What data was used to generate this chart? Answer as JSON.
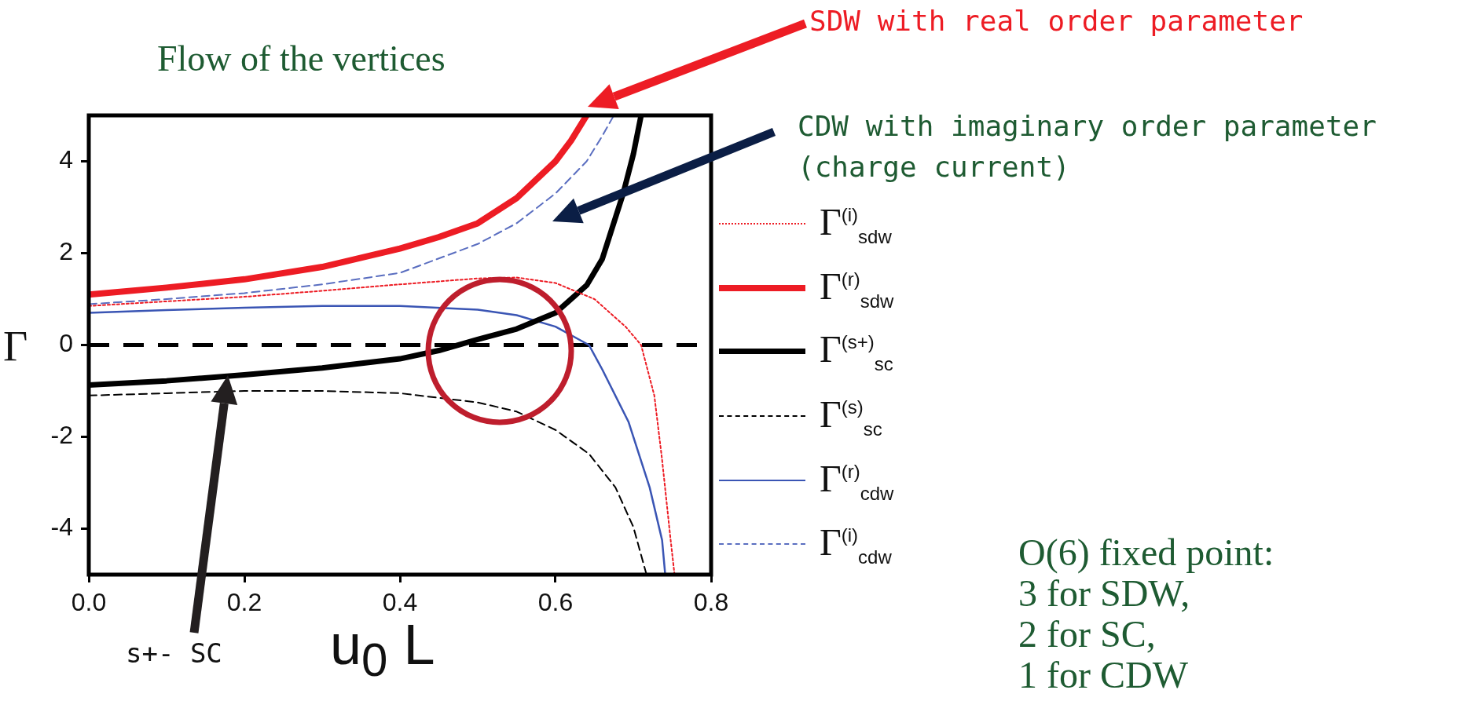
{
  "chart_data": {
    "type": "line",
    "title": "Flow of the vertices",
    "xlabel": "u$_{0}$ L",
    "ylabel": "Γ",
    "xlim": [
      0,
      0.8
    ],
    "xticks": [
      {
        "value": 0,
        "label": "0.0"
      },
      0.2,
      0.4,
      0.6,
      {
        "value": 0.8,
        "label": "0.8"
      }
    ],
    "ylim": [
      -5,
      5
    ],
    "yticks": [
      -4,
      -2,
      0,
      2,
      4
    ],
    "grid": false,
    "legend": "right",
    "marker": "none",
    "ref_lines": [
      {
        "axis": "y",
        "value": 0,
        "color": "#000000",
        "line_style": "dashed"
      }
    ],
    "annotations": [
      "SDW with real order parameter",
      "CDW with imaginary order parameter",
      "(charge current)",
      "s+- SC",
      "O(6) fixed point:",
      "3 for SDW,",
      "2 for SC,",
      "1 for CDW"
    ],
    "series": [
      {
        "name": "Γ$^{(i)}$$_{sdw}$",
        "color": "#ed1c24",
        "line_style": "dotted",
        "x": [
          0,
          0.1,
          0.2,
          0.3,
          0.4,
          0.5,
          0.55,
          0.6,
          0.65,
          0.69,
          0.71,
          0.727,
          0.737,
          0.748,
          0.753
        ],
        "values": [
          0.85,
          0.95,
          1.05,
          1.18,
          1.32,
          1.45,
          1.47,
          1.35,
          1.0,
          0.4,
          0,
          -1.1,
          -2.5,
          -4.25,
          -5
        ]
      },
      {
        "name": "Γ$^{(r)}$$_{sdw}$",
        "color": "#ed1c24",
        "line_style": "solid",
        "x": [
          0,
          0.1,
          0.2,
          0.3,
          0.4,
          0.45,
          0.5,
          0.55,
          0.6,
          0.62,
          0.64
        ],
        "values": [
          1.1,
          1.25,
          1.43,
          1.7,
          2.1,
          2.35,
          2.65,
          3.2,
          4.0,
          4.45,
          5.0
        ]
      },
      {
        "name": "Γ$^{(s+)}$$_{sc}$",
        "color": "#000000",
        "line_style": "solid",
        "x": [
          0,
          0.1,
          0.2,
          0.3,
          0.4,
          0.45,
          0.5,
          0.55,
          0.6,
          0.64,
          0.66,
          0.687,
          0.7,
          0.71
        ],
        "values": [
          -0.87,
          -0.78,
          -0.65,
          -0.5,
          -0.3,
          -0.12,
          0.12,
          0.35,
          0.7,
          1.3,
          1.87,
          3.3,
          4.15,
          5.0
        ]
      },
      {
        "name": "Γ$^{(s)}$$_{sc}$",
        "color": "#000000",
        "line_style": "dashed",
        "x": [
          0,
          0.1,
          0.2,
          0.3,
          0.4,
          0.5,
          0.55,
          0.6,
          0.643,
          0.677,
          0.7,
          0.717
        ],
        "values": [
          -1.1,
          -1.05,
          -1.0,
          -1.0,
          -1.05,
          -1.25,
          -1.45,
          -1.85,
          -2.37,
          -3.1,
          -3.96,
          -5
        ]
      },
      {
        "name": "Γ$^{(r)}$$_{cdw}$",
        "color": "#3a55b4",
        "line_style": "solid",
        "x": [
          0,
          0.1,
          0.2,
          0.3,
          0.4,
          0.5,
          0.55,
          0.6,
          0.643,
          0.66,
          0.694,
          0.721,
          0.737,
          0.741
        ],
        "values": [
          0.7,
          0.76,
          0.81,
          0.85,
          0.85,
          0.77,
          0.65,
          0.4,
          0,
          -0.53,
          -1.68,
          -3.1,
          -4.25,
          -5
        ]
      },
      {
        "name": "Γ$^{(i)}$$_{cdw}$",
        "color": "#5a6ec0",
        "line_style": "dashed",
        "x": [
          0,
          0.1,
          0.2,
          0.3,
          0.4,
          0.5,
          0.55,
          0.6,
          0.64,
          0.66,
          0.675
        ],
        "values": [
          0.89,
          1.0,
          1.13,
          1.32,
          1.57,
          2.2,
          2.65,
          3.3,
          4.0,
          4.55,
          5.0
        ]
      }
    ]
  }
}
